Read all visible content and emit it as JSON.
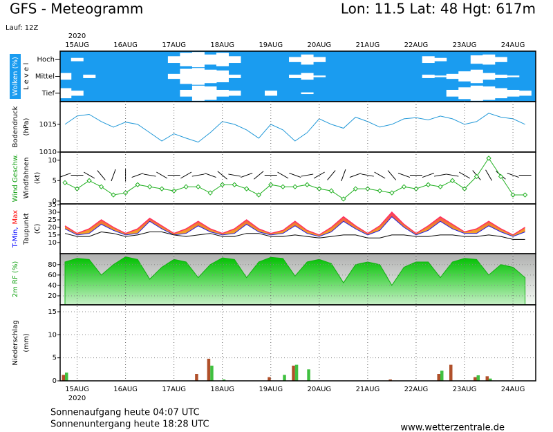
{
  "header": {
    "title": "GFS - Meteogramm",
    "location": "Lon: 11.5 Lat: 48 Hgt: 617m",
    "run": "Lauf: 12Z"
  },
  "footer": {
    "sunrise": "Sonnenaufgang heute 04:07 UTC",
    "sunset": "Sonnenuntergang heute 18:28 UTC",
    "source": "www.wetterzentrale.de"
  },
  "time_axis": {
    "year": "2020",
    "xlim": [
      -0.35,
      9.47
    ],
    "xticks": [
      {
        "value": 0,
        "label": "15AUG"
      },
      {
        "value": 1,
        "label": "16AUG"
      },
      {
        "value": 2,
        "label": "17AUG"
      },
      {
        "value": 3,
        "label": "18AUG"
      },
      {
        "value": 4,
        "label": "19AUG"
      },
      {
        "value": 5,
        "label": "20AUG"
      },
      {
        "value": 6,
        "label": "21AUG"
      },
      {
        "value": 7,
        "label": "22AUG"
      },
      {
        "value": 8,
        "label": "23AUG"
      },
      {
        "value": 9,
        "label": "24AUG"
      }
    ],
    "x": [
      -0.25,
      0,
      0.25,
      0.5,
      0.75,
      1,
      1.25,
      1.5,
      1.75,
      2,
      2.25,
      2.5,
      2.75,
      3,
      3.25,
      3.5,
      3.75,
      4,
      4.25,
      4.5,
      4.75,
      5,
      5.25,
      5.5,
      5.75,
      6,
      6.25,
      6.5,
      6.75,
      7,
      7.25,
      7.5,
      7.75,
      8,
      8.25,
      8.5,
      8.75,
      9,
      9.25
    ]
  },
  "chart_data": [
    {
      "type": "heatmap",
      "background": "#1a9cf0",
      "cloud_color": "#ffffff",
      "zlim": [
        0,
        100
      ],
      "ylabel": [
        [
          {
            "text": "Wolken (%)",
            "color": "#ffffff"
          }
        ],
        [
          {
            "text": "L e v e l",
            "color": "#000000"
          }
        ]
      ],
      "series": [
        {
          "name": "Hoch",
          "values": [
            0,
            20,
            0,
            0,
            0,
            0,
            0,
            0,
            0,
            40,
            80,
            90,
            60,
            80,
            40,
            0,
            0,
            0,
            0,
            30,
            60,
            30,
            0,
            0,
            0,
            0,
            0,
            0,
            0,
            0,
            40,
            20,
            0,
            0,
            50,
            60,
            30,
            0,
            0
          ]
        },
        {
          "name": "Mittel",
          "values": [
            40,
            0,
            20,
            0,
            0,
            0,
            0,
            0,
            0,
            30,
            90,
            100,
            80,
            70,
            20,
            0,
            0,
            0,
            0,
            20,
            40,
            10,
            0,
            0,
            0,
            0,
            0,
            0,
            0,
            0,
            20,
            10,
            30,
            60,
            80,
            40,
            20,
            10,
            0
          ]
        },
        {
          "name": "Tief",
          "values": [
            60,
            30,
            0,
            0,
            0,
            0,
            0,
            0,
            0,
            0,
            40,
            90,
            80,
            40,
            30,
            0,
            0,
            30,
            0,
            0,
            10,
            0,
            0,
            0,
            0,
            0,
            0,
            0,
            0,
            0,
            0,
            0,
            40,
            70,
            90,
            80,
            60,
            40,
            30
          ]
        }
      ]
    },
    {
      "type": "line",
      "ylim": [
        1010,
        1019.1
      ],
      "yticks": [
        1010,
        1015
      ],
      "grid": false,
      "ylabel": [
        [
          {
            "text": "Bodendruck",
            "color": "#000000"
          }
        ],
        [
          {
            "text": "(hPa)",
            "color": "#000000"
          }
        ]
      ],
      "series": [
        {
          "color": "#2098d8",
          "values": [
            1015.0,
            1016.5,
            1016.8,
            1015.5,
            1014.5,
            1015.4,
            1015.0,
            1013.5,
            1012.0,
            1013.3,
            1012.5,
            1011.8,
            1013.5,
            1015.5,
            1015.0,
            1014.0,
            1012.5,
            1015.0,
            1014.0,
            1012.0,
            1013.5,
            1016.0,
            1015.0,
            1014.3,
            1016.3,
            1015.5,
            1014.5,
            1015.0,
            1016.0,
            1016.2,
            1015.8,
            1016.5,
            1016.0,
            1015.0,
            1015.5,
            1017.0,
            1016.3,
            1016.0,
            1015.0
          ]
        }
      ]
    },
    {
      "type": "wind",
      "ylim": [
        -0.7,
        12
      ],
      "yticks": [
        0,
        5,
        10
      ],
      "grid": false,
      "barb_color": "#000000",
      "ylabel": [
        [
          {
            "text": "Wind Geschw.",
            "color": "#10a010"
          }
        ],
        [
          {
            "text": "Windfahnen",
            "color": "#000000"
          }
        ],
        [
          {
            "text": "(kt)",
            "color": "#000000"
          }
        ]
      ],
      "series": [
        {
          "color": "#20b020",
          "values": [
            4.5,
            3,
            5,
            3.5,
            1.5,
            2,
            4,
            3.5,
            3,
            2.5,
            3.5,
            3.5,
            2,
            4,
            4,
            3,
            1.5,
            4,
            3.5,
            3.5,
            4,
            3,
            2.5,
            0.5,
            3,
            3,
            2.5,
            2,
            3.5,
            3,
            4,
            3.5,
            5,
            3,
            6,
            10.5,
            6,
            1.5,
            1.5
          ]
        }
      ],
      "directions": [
        250,
        270,
        300,
        320,
        200,
        180,
        250,
        280,
        300,
        270,
        240,
        260,
        290,
        310,
        280,
        250,
        230,
        270,
        300,
        290,
        260,
        240,
        220,
        200,
        250,
        280,
        300,
        320,
        290,
        270,
        250,
        260,
        280,
        300,
        320,
        330,
        310,
        290,
        270
      ]
    },
    {
      "type": "temperature",
      "ylim": [
        2.6,
        35.5
      ],
      "yticks": [
        10,
        15,
        20,
        25,
        30,
        35
      ],
      "grid": false,
      "ylabel": [
        [
          {
            "text": "T-Min,",
            "color": "#0000ff"
          },
          {
            "text": "Max",
            "color": "#ff0000"
          }
        ],
        [
          {
            "text": "Taupunkt",
            "color": "#000000"
          }
        ],
        [
          {
            "text": "(C)",
            "color": "#000000"
          }
        ]
      ],
      "series": [
        {
          "color": "#ff3060",
          "values": [
            21,
            16,
            19,
            25,
            20,
            16,
            19,
            26,
            21,
            16,
            19,
            24,
            19,
            16,
            19,
            25,
            19,
            16,
            18,
            24,
            18,
            15,
            20,
            27,
            21,
            16,
            21,
            30,
            22,
            16,
            21,
            27,
            22,
            17,
            19,
            24,
            19,
            15,
            20
          ]
        },
        {
          "color": "#2020e0",
          "values": [
            19,
            15,
            16,
            22,
            18,
            15,
            16,
            24,
            19,
            15,
            16,
            21,
            17,
            15,
            16,
            22,
            17,
            15,
            16,
            21,
            16,
            14,
            17,
            24,
            19,
            15,
            18,
            27,
            20,
            15,
            18,
            24,
            19,
            16,
            16,
            21,
            17,
            14,
            17
          ]
        },
        {
          "color": "#000000",
          "values": [
            16,
            14,
            14,
            17,
            16,
            14,
            15,
            17,
            17,
            15,
            14,
            15,
            16,
            14,
            14,
            16,
            16,
            14,
            14,
            15,
            14,
            13,
            14,
            15,
            15,
            13,
            13,
            15,
            15,
            14,
            14,
            15,
            15,
            14,
            14,
            15,
            14,
            12,
            12
          ]
        }
      ]
    },
    {
      "type": "area",
      "ylim": [
        2.7,
        101
      ],
      "yticks": [
        20,
        40,
        60,
        80
      ],
      "grid": true,
      "ylabel": [
        [
          {
            "text": "2m RF (%)",
            "color": "#10a010"
          }
        ]
      ],
      "series": [
        {
          "color": "#10b010",
          "values": [
            85,
            92,
            90,
            60,
            80,
            95,
            90,
            52,
            75,
            90,
            85,
            55,
            80,
            93,
            90,
            55,
            85,
            94,
            92,
            58,
            85,
            90,
            82,
            45,
            80,
            85,
            80,
            40,
            75,
            85,
            85,
            55,
            85,
            92,
            90,
            60,
            80,
            75,
            55
          ]
        }
      ]
    },
    {
      "type": "bar",
      "ylim": [
        0,
        16.5
      ],
      "yticks": [
        0,
        5,
        10,
        15
      ],
      "grid": true,
      "ylabel": [
        [
          {
            "text": "Niederschlag",
            "color": "#000000"
          }
        ],
        [
          {
            "text": "(mm)",
            "color": "#000000"
          }
        ]
      ],
      "series": [
        {
          "color": "#b0502a",
          "values": [
            1.3,
            0,
            0,
            0,
            0,
            0,
            0,
            0,
            0,
            0,
            0,
            1.5,
            4.8,
            0,
            0,
            0,
            0,
            0.8,
            0,
            3.3,
            0,
            0,
            0,
            0,
            0,
            0,
            0,
            0.3,
            0,
            0,
            0,
            1.5,
            3.5,
            0,
            0.8,
            1,
            0,
            0,
            0
          ]
        },
        {
          "color": "#40c040",
          "values": [
            1.8,
            0,
            0,
            0,
            0,
            0,
            0,
            0,
            0,
            0,
            0,
            0,
            3.3,
            0.3,
            0,
            0,
            0,
            0,
            1.3,
            3.5,
            2.5,
            0,
            0,
            0,
            0,
            0,
            0,
            0,
            0,
            0,
            0,
            2.2,
            0,
            0,
            1.2,
            0.5,
            0,
            0,
            0
          ]
        }
      ]
    }
  ]
}
